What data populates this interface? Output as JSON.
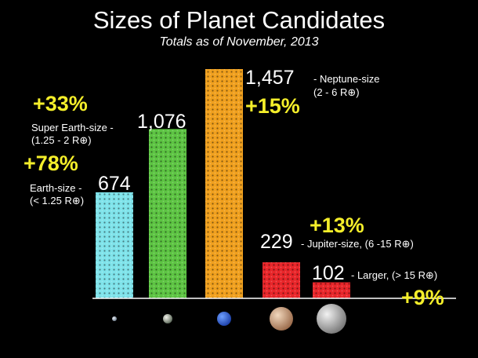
{
  "chart_data": {
    "type": "bar",
    "title": "Sizes of Planet Candidates",
    "subtitle": "Totals as of November, 2013",
    "categories": [
      "Earth-size",
      "Super Earth-size",
      "Neptune-size",
      "Jupiter-size",
      "Larger"
    ],
    "values": [
      674,
      1076,
      1457,
      229,
      102
    ],
    "value_labels": [
      "674",
      "1,076",
      "1,457",
      "229",
      "102"
    ],
    "size_ranges": [
      "(< 1.25 R⊕)",
      "(1.25 - 2 R⊕)",
      "(2 - 6 R⊕)",
      "(6 -15 R⊕)",
      "(> 15 R⊕)"
    ],
    "category_labels": [
      "Earth-size -",
      "Super Earth-size -",
      "- Neptune-size",
      "- Jupiter-size, (6 -15 R⊕)",
      "- Larger, (> 15 R⊕)"
    ],
    "percent_increase": [
      "+78%",
      "+33%",
      "+15%",
      "+13%",
      "+9%"
    ],
    "colors": [
      "#7fe3ea",
      "#5dc443",
      "#f0a01e",
      "#e8262a",
      "#e8262a"
    ],
    "icons": [
      "earth-icon",
      "super-earth-icon",
      "neptune-icon",
      "jupiter-icon",
      "larger-planet-icon"
    ],
    "ylim": [
      0,
      1500
    ],
    "grid": false,
    "legend": "none"
  }
}
